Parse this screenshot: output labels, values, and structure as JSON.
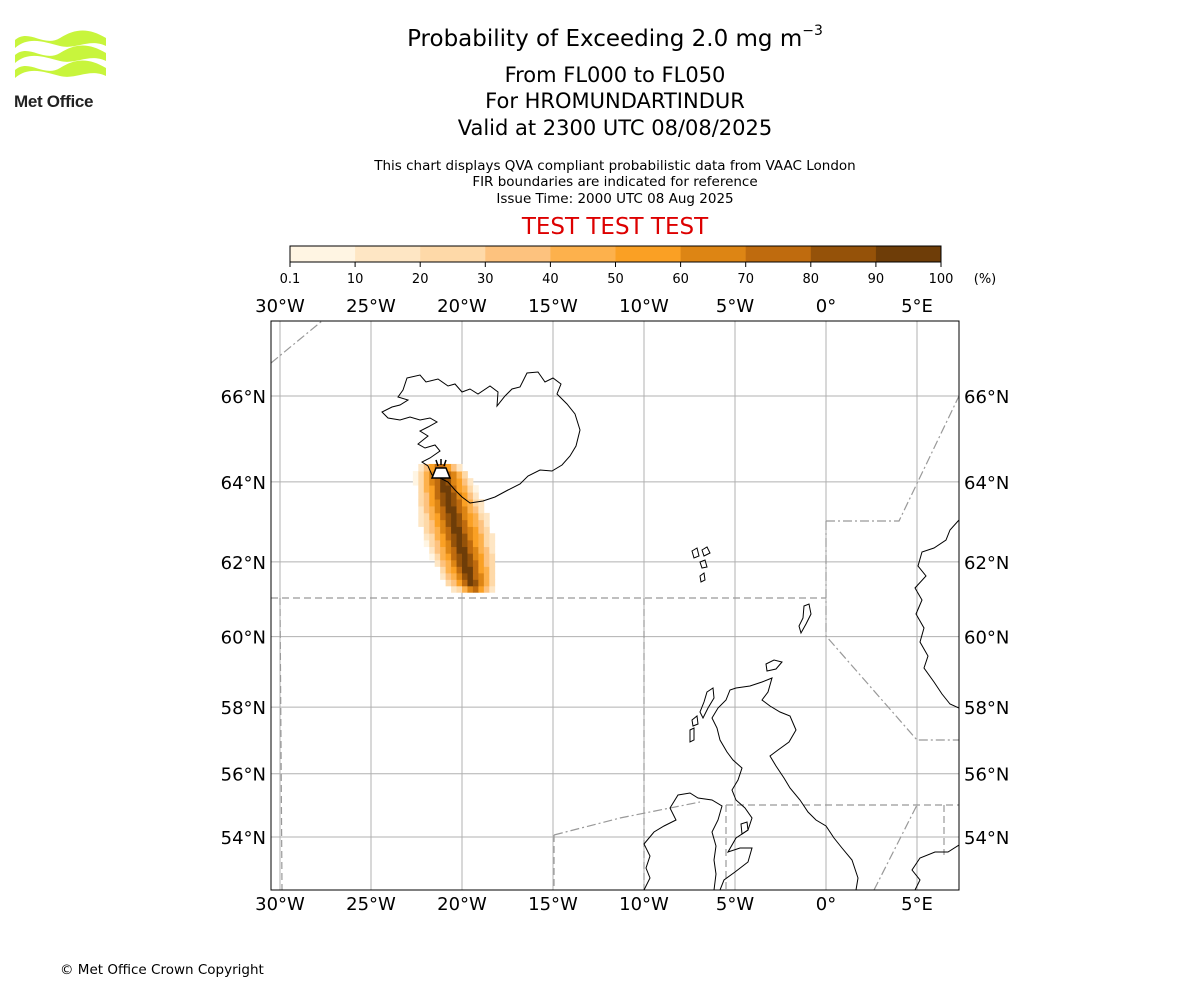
{
  "logo": {
    "name": "Met Office",
    "wave_color": "#c8f53c"
  },
  "header": {
    "title_prefix": "Probability of Exceeding 2.0 mg m",
    "title_exponent": "−3",
    "level_range": "From FL000 to FL050",
    "location": "For HROMUNDARTINDUR",
    "valid_time": "Valid at 2300 UTC 08/08/2025",
    "note_1": "This chart displays QVA compliant probabilistic data from VAAC London",
    "note_2": "FIR boundaries are indicated for reference",
    "issue_time": "Issue Time: 2000 UTC 08 Aug 2025",
    "test_banner": "TEST TEST TEST",
    "test_color": "#dd0000"
  },
  "colorbar": {
    "tick_labels": [
      "0.1",
      "10",
      "20",
      "30",
      "40",
      "50",
      "60",
      "70",
      "80",
      "90",
      "100"
    ],
    "unit": "(%)",
    "bin_colors": [
      "#fff5e3",
      "#fee6c4",
      "#fed9a8",
      "#fdc27e",
      "#fdb14c",
      "#faa024",
      "#dd8514",
      "#bf6b0e",
      "#955209",
      "#6e3d08"
    ]
  },
  "map": {
    "lon_labels": [
      "30°W",
      "25°W",
      "20°W",
      "15°W",
      "10°W",
      "5°W",
      "0°",
      "5°E"
    ],
    "lat_labels": [
      "66°N",
      "64°N",
      "62°N",
      "60°N",
      "58°N",
      "56°N",
      "54°N"
    ],
    "lon_values": [
      -30,
      -25,
      -20,
      -15,
      -10,
      -5,
      0,
      5
    ],
    "lat_values": [
      66,
      64,
      62,
      60,
      58,
      56,
      54
    ],
    "gridline_color": "#b0b0b0",
    "fir_color": "#999999",
    "coast_color": "#000000",
    "plume_summary": "Ash plume extends south-west from the volcano near 64.2°N 21°W down to about 61.3°N 19.5°W"
  },
  "footer": {
    "copyright": "© Met Office Crown Copyright"
  }
}
